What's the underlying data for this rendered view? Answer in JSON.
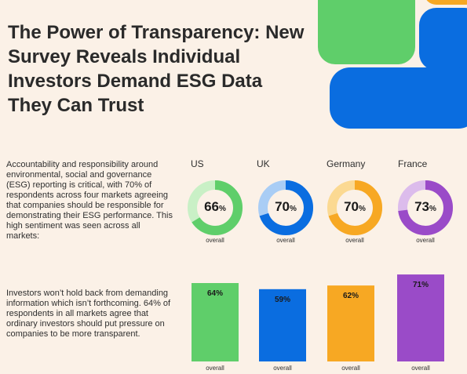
{
  "title": "The Power of Transparency: New Survey Reveals Individual Investors Demand ESG Data They Can Trust",
  "paragraphs": {
    "p1": "Accountability and responsibility around environmental, social and governance (ESG) reporting is critical, with 70% of respondents across four markets agreeing that companies should be responsible for demonstrating their ESG performance. This high sentiment was seen across all markets:",
    "p2": "Investors won’t hold back from demanding information which isn’t forthcoming. 64% of respondents in all markets agree that ordinary investors should put pressure on companies to be more transparent."
  },
  "colors": {
    "background": "#fbf1e7",
    "us": "#5fce6a",
    "uk": "#0a6de0",
    "germany": "#f7a823",
    "france": "#9a4bc8"
  },
  "chart_data": [
    {
      "type": "pie",
      "categories": [
        "US",
        "UK",
        "Germany",
        "France"
      ],
      "values": [
        66,
        70,
        70,
        73
      ],
      "value_labels": [
        "66%",
        "70%",
        "70%",
        "73%"
      ],
      "sublabel": "overall"
    },
    {
      "type": "bar",
      "categories": [
        "US",
        "UK",
        "Germany",
        "France"
      ],
      "values": [
        64,
        59,
        62,
        71
      ],
      "value_labels": [
        "64%",
        "59%",
        "62%",
        "71%"
      ],
      "sublabel": "overall"
    }
  ]
}
